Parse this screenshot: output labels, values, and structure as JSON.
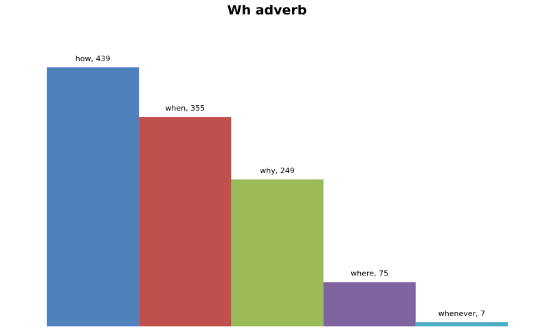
{
  "chart_data": {
    "type": "bar",
    "title": "Wh adverb",
    "categories": [
      "how",
      "when",
      "why",
      "where",
      "whenever"
    ],
    "values": [
      439,
      355,
      249,
      75,
      7
    ],
    "labels": [
      "how, 439",
      "when, 355",
      "why, 249",
      "where, 75",
      "whenever, 7"
    ],
    "colors": [
      "#4F81BD",
      "#C0504D",
      "#9BBB59",
      "#8064A2",
      "#4BACC6"
    ],
    "xlabel": "",
    "ylabel": "",
    "ylim": [
      0,
      439
    ],
    "grid": false,
    "legend": "none"
  }
}
